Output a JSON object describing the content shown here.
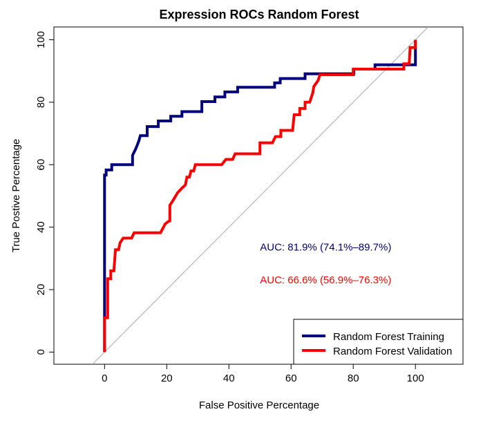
{
  "chart_data": {
    "type": "line",
    "title": "Expression ROCs Random Forest",
    "xlabel": "False Positive Percentage",
    "ylabel": "True Postive Percentage",
    "xlim": [
      -16.3,
      115.3
    ],
    "ylim": [
      -3.9,
      104.1
    ],
    "x_ticks": [
      0,
      20,
      40,
      60,
      80,
      100
    ],
    "y_ticks": [
      0,
      20,
      40,
      60,
      80,
      100
    ],
    "grid": false,
    "diagonal_reference": {
      "from": [
        0,
        0
      ],
      "to": [
        100,
        100
      ],
      "color": "#aaaaaa"
    },
    "series": [
      {
        "name": "Random Forest Training",
        "color": "#00007f",
        "points": [
          [
            0,
            0
          ],
          [
            0,
            56.7
          ],
          [
            0.5,
            56.7
          ],
          [
            0.5,
            58.3
          ],
          [
            2.3,
            58.3
          ],
          [
            2.3,
            60.0
          ],
          [
            9.0,
            60.0
          ],
          [
            9.0,
            63.0
          ],
          [
            10.0,
            65.0
          ],
          [
            11.0,
            67.5
          ],
          [
            11.5,
            69.3
          ],
          [
            13.7,
            69.3
          ],
          [
            13.7,
            72.2
          ],
          [
            17.3,
            72.2
          ],
          [
            17.3,
            74.0
          ],
          [
            21.3,
            74.0
          ],
          [
            21.3,
            75.5
          ],
          [
            24.9,
            75.5
          ],
          [
            24.9,
            77.0
          ],
          [
            31.3,
            77.0
          ],
          [
            31.3,
            80.2
          ],
          [
            35.5,
            80.2
          ],
          [
            35.5,
            81.7
          ],
          [
            38.7,
            81.7
          ],
          [
            38.7,
            83.3
          ],
          [
            42.8,
            83.3
          ],
          [
            42.8,
            84.8
          ],
          [
            54.7,
            84.8
          ],
          [
            54.7,
            86.2
          ],
          [
            56.5,
            86.2
          ],
          [
            56.5,
            87.6
          ],
          [
            64.5,
            87.6
          ],
          [
            64.5,
            89.1
          ],
          [
            80.2,
            89.1
          ],
          [
            80.2,
            90.6
          ],
          [
            87.0,
            90.6
          ],
          [
            87.0,
            92.0
          ],
          [
            100.0,
            92.0
          ],
          [
            100.0,
            100.0
          ]
        ]
      },
      {
        "name": "Random Forest Validation",
        "color": "#ff0000",
        "points": [
          [
            0,
            0
          ],
          [
            0,
            11.0
          ],
          [
            1.0,
            11.0
          ],
          [
            1.0,
            23.5
          ],
          [
            2.0,
            23.5
          ],
          [
            2.0,
            26.0
          ],
          [
            3.0,
            26.0
          ],
          [
            3.5,
            32.8
          ],
          [
            4.5,
            32.8
          ],
          [
            5.0,
            35.0
          ],
          [
            6.0,
            36.5
          ],
          [
            8.7,
            36.5
          ],
          [
            9.5,
            38.2
          ],
          [
            18.0,
            38.2
          ],
          [
            19.5,
            41.0
          ],
          [
            20.5,
            41.8
          ],
          [
            21.0,
            42.0
          ],
          [
            21.0,
            47.0
          ],
          [
            22.0,
            48.5
          ],
          [
            23.5,
            51.0
          ],
          [
            24.9,
            52.5
          ],
          [
            26.0,
            53.5
          ],
          [
            26.5,
            56.0
          ],
          [
            27.3,
            56.0
          ],
          [
            27.8,
            58.0
          ],
          [
            28.7,
            58.0
          ],
          [
            29.2,
            60.0
          ],
          [
            37.7,
            60.0
          ],
          [
            39.0,
            61.7
          ],
          [
            41.2,
            61.7
          ],
          [
            42.0,
            63.5
          ],
          [
            50.0,
            63.5
          ],
          [
            50.0,
            67.0
          ],
          [
            54.0,
            67.0
          ],
          [
            55.0,
            69.0
          ],
          [
            56.7,
            69.0
          ],
          [
            56.7,
            71.0
          ],
          [
            60.5,
            71.0
          ],
          [
            61.0,
            76.0
          ],
          [
            62.8,
            76.0
          ],
          [
            62.8,
            78.0
          ],
          [
            64.5,
            78.0
          ],
          [
            64.5,
            80.0
          ],
          [
            66.0,
            80.0
          ],
          [
            67.0,
            83.0
          ],
          [
            67.3,
            85.0
          ],
          [
            68.7,
            87.0
          ],
          [
            69.3,
            88.8
          ],
          [
            76.5,
            88.8
          ],
          [
            80.0,
            88.8
          ],
          [
            80.0,
            90.6
          ],
          [
            86.5,
            90.6
          ],
          [
            88.0,
            90.6
          ],
          [
            96.3,
            90.6
          ],
          [
            96.3,
            92.3
          ],
          [
            98.0,
            92.3
          ],
          [
            98.3,
            97.5
          ],
          [
            100.0,
            97.5
          ],
          [
            100.0,
            100.0
          ]
        ]
      }
    ],
    "annotations": [
      {
        "text": "AUC: 81.9% (74.1%–89.7%)",
        "x": 50,
        "y": 33.6,
        "color": "#00007f"
      },
      {
        "text": "AUC: 66.6% (56.9%–76.3%)",
        "x": 50,
        "y": 23.1,
        "color": "#ff0000"
      }
    ],
    "legend": {
      "position": "bottom-right",
      "entries": [
        "Random Forest Training",
        "Random Forest Validation"
      ]
    }
  }
}
